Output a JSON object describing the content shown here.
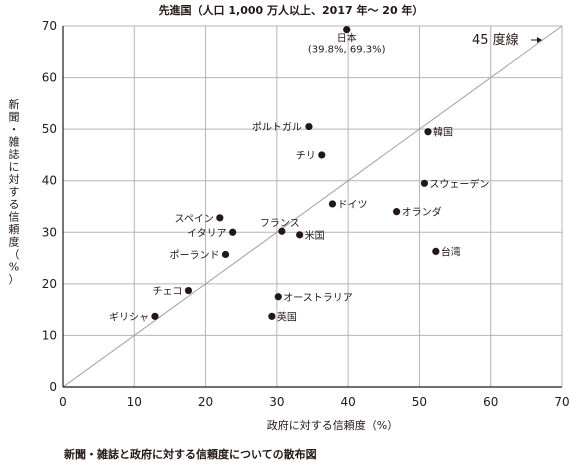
{
  "chart_data": {
    "type": "scatter",
    "title": "先進国（人口 1,000 万人以上、2017 年～ 20 年）",
    "xlabel": "政府に対する信頼度（%）",
    "ylabel": "新聞・雑誌に対する信頼度（%）",
    "xlim": [
      0,
      70
    ],
    "ylim": [
      0,
      70
    ],
    "xticks": [
      "0",
      "10",
      "20",
      "30",
      "40",
      "50",
      "60",
      "70"
    ],
    "yticks": [
      "0",
      "10",
      "20",
      "30",
      "40",
      "50",
      "60",
      "70"
    ],
    "grid": true,
    "reference_line": {
      "label": "45 度線",
      "slope": 1,
      "intercept": 0
    },
    "points": [
      {
        "label": "日本",
        "sublabel": "(39.8%, 69.3%)",
        "x": 39.8,
        "y": 69.3
      },
      {
        "label": "ポルトガル",
        "x": 34.5,
        "y": 50.5
      },
      {
        "label": "韓国",
        "x": 51.2,
        "y": 49.5
      },
      {
        "label": "チリ",
        "x": 36.3,
        "y": 45.0
      },
      {
        "label": "スウェーデン",
        "x": 50.7,
        "y": 39.5
      },
      {
        "label": "ドイツ",
        "x": 37.8,
        "y": 35.5
      },
      {
        "label": "オランダ",
        "x": 46.8,
        "y": 34.0
      },
      {
        "label": "スペイン",
        "x": 22.0,
        "y": 32.8
      },
      {
        "label": "イタリア",
        "x": 23.8,
        "y": 30.0
      },
      {
        "label": "フランス",
        "x": 30.7,
        "y": 30.2
      },
      {
        "label": "米国",
        "x": 33.2,
        "y": 29.5
      },
      {
        "label": "台湾",
        "x": 52.3,
        "y": 26.3
      },
      {
        "label": "ポーランド",
        "x": 22.8,
        "y": 25.7
      },
      {
        "label": "チェコ",
        "x": 17.6,
        "y": 18.7
      },
      {
        "label": "オーストラリア",
        "x": 30.2,
        "y": 17.5
      },
      {
        "label": "ギリシャ",
        "x": 12.9,
        "y": 13.7
      },
      {
        "label": "英国",
        "x": 29.3,
        "y": 13.7
      }
    ]
  },
  "caption": "新聞・雑誌と政府に対する信頼度についての散布図",
  "colors": {
    "point": "#231815",
    "grid": "#b5b5b6",
    "reference_line": "#9fa0a0",
    "axis": "#231815"
  }
}
